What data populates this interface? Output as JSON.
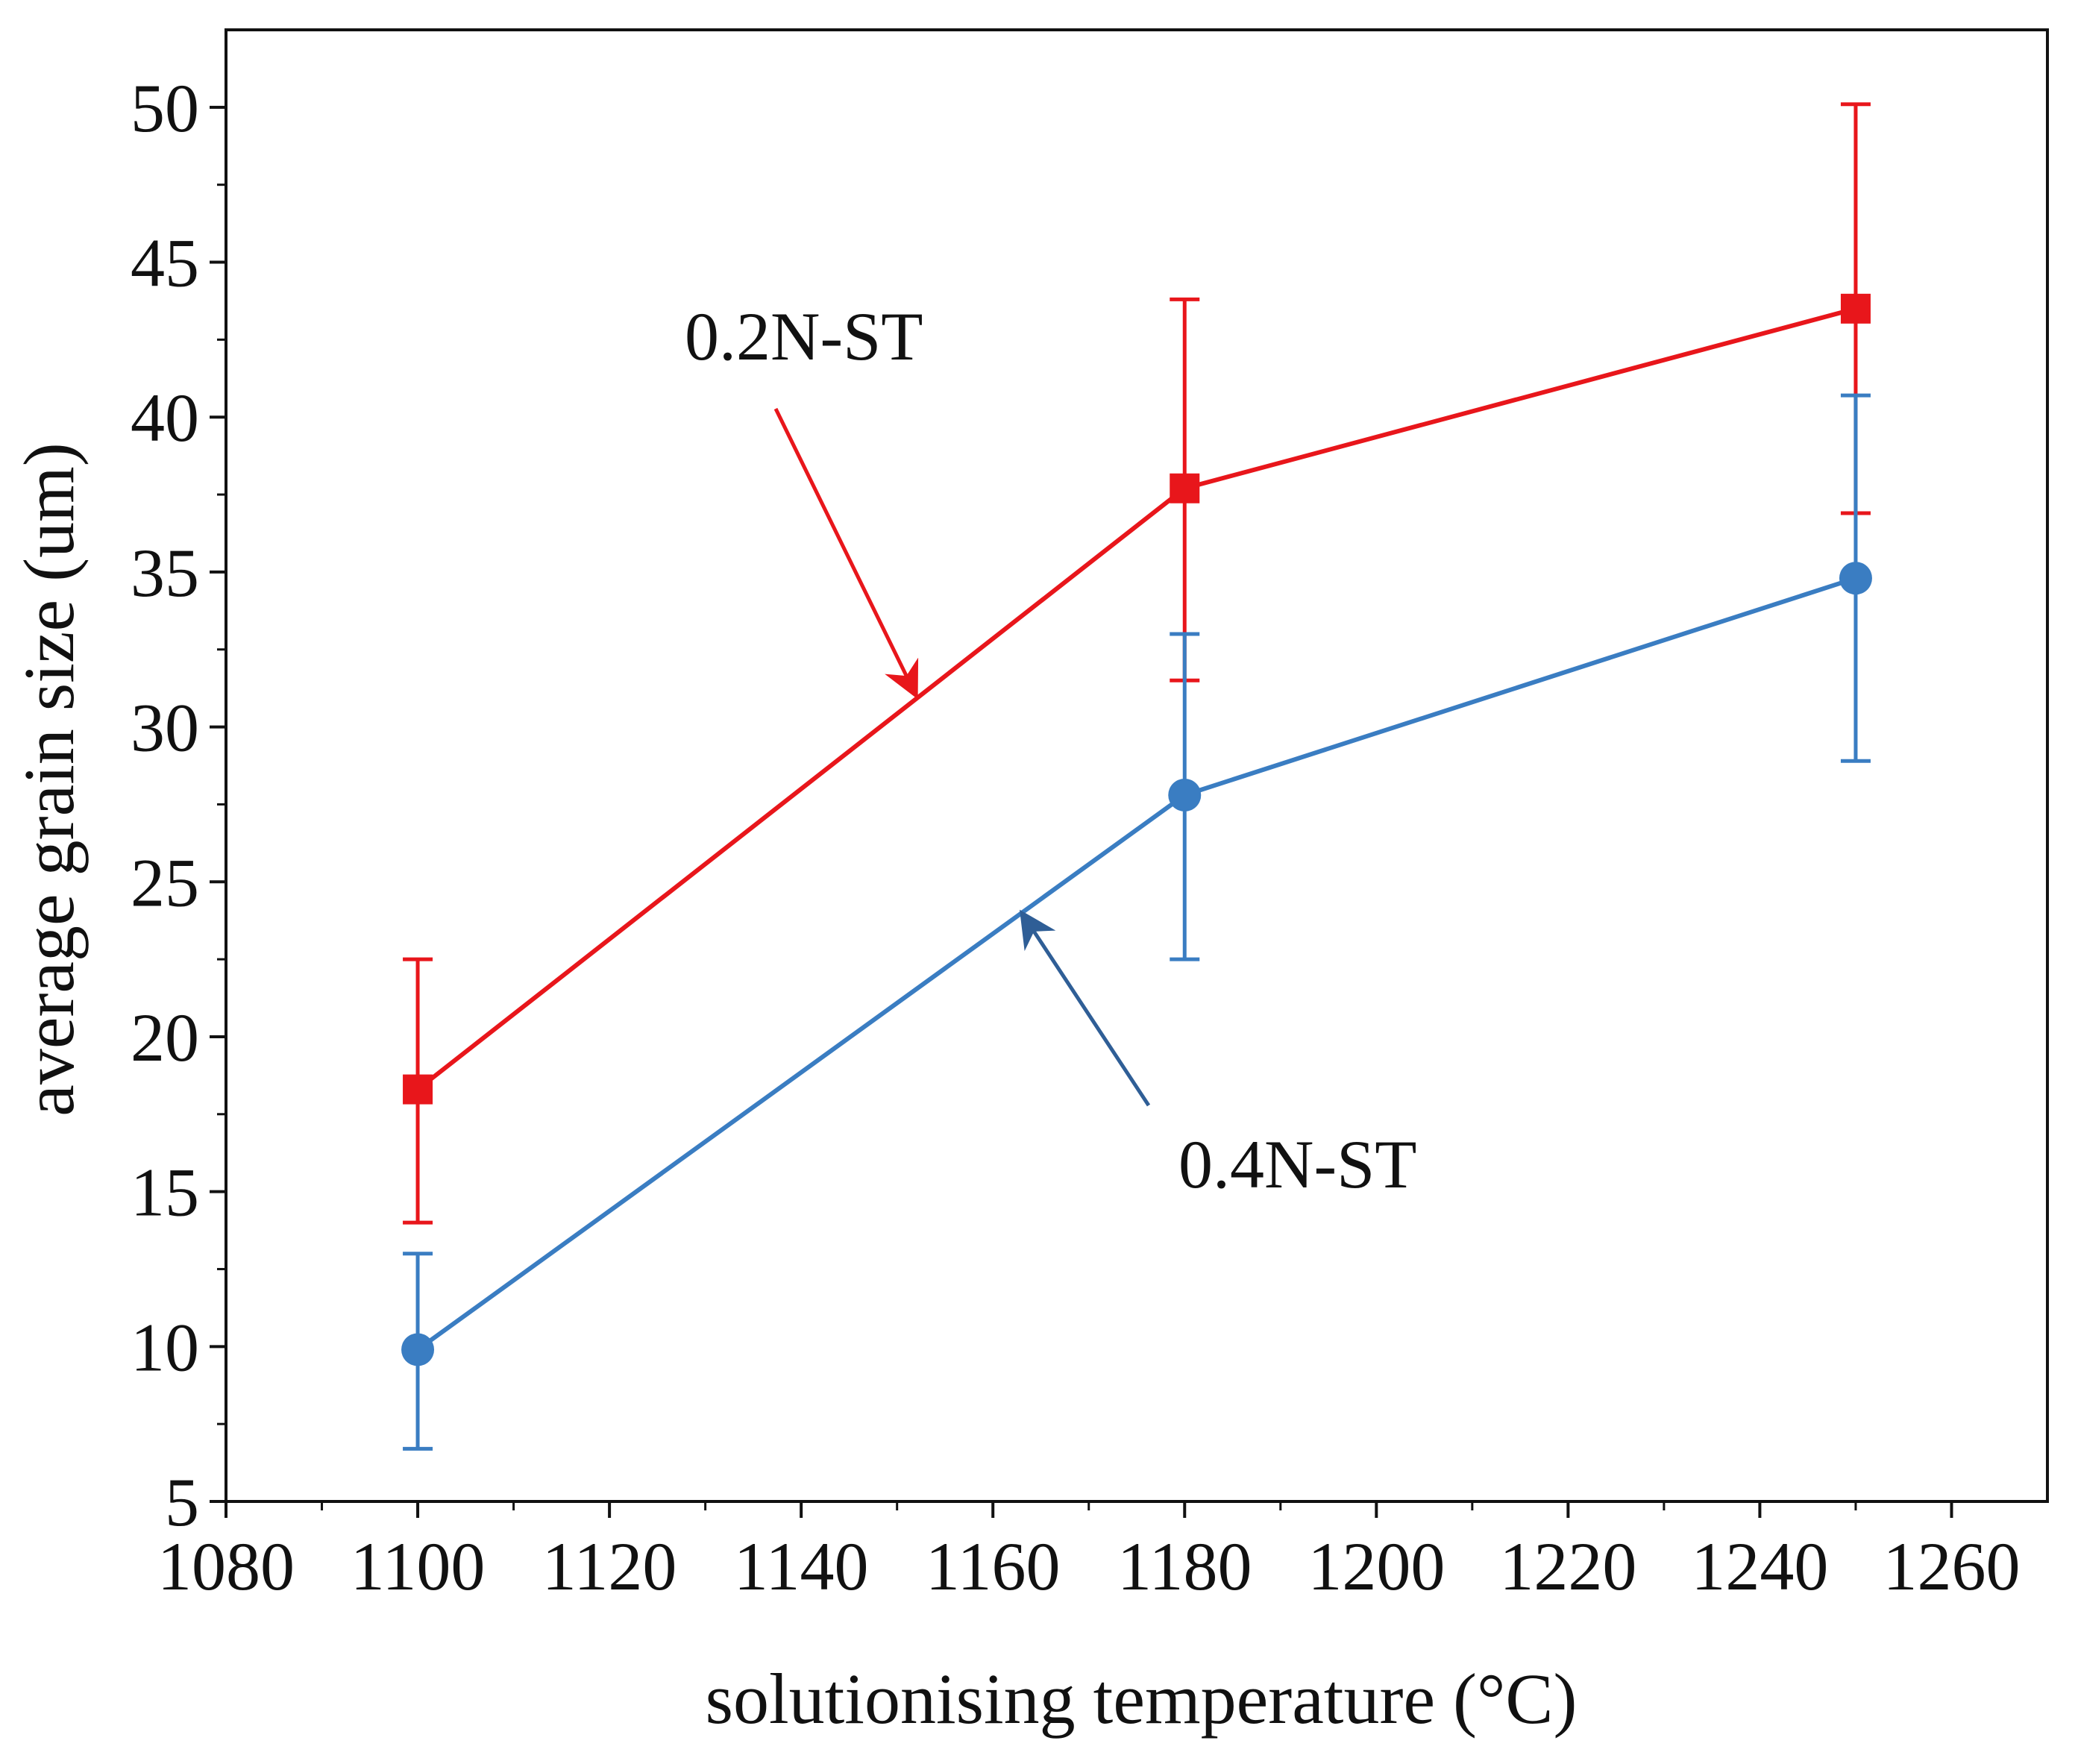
{
  "chart_data": {
    "type": "line",
    "title": "",
    "xlabel": "solutionising temperature (°C)",
    "ylabel": "average grain size (um)",
    "xlim": [
      1080,
      1270
    ],
    "ylim": [
      5,
      52.5
    ],
    "xticks": [
      1080,
      1100,
      1120,
      1140,
      1160,
      1180,
      1200,
      1220,
      1240,
      1260
    ],
    "yticks": [
      5,
      10,
      15,
      20,
      25,
      30,
      35,
      40,
      45,
      50
    ],
    "grid": false,
    "legend": "none",
    "series": [
      {
        "name": "0.2N-ST",
        "color": "#e8161b",
        "marker": "square",
        "x": [
          1100,
          1180,
          1250
        ],
        "values": [
          18.3,
          37.7,
          43.5
        ],
        "error_low": [
          14.0,
          31.5,
          36.9
        ],
        "error_high": [
          22.5,
          43.8,
          50.1
        ]
      },
      {
        "name": "0.4N-ST",
        "color": "#3a7dc2",
        "marker": "circle",
        "x": [
          1100,
          1180,
          1250
        ],
        "values": [
          9.9,
          27.8,
          34.8
        ],
        "error_low": [
          6.7,
          22.5,
          28.9
        ],
        "error_high": [
          13.0,
          33.0,
          40.7
        ]
      }
    ],
    "annotations": [
      {
        "text": "0.2N-ST",
        "series": "0.2N-ST",
        "arrow_to": {
          "x": 1152,
          "y": 31
        }
      },
      {
        "text": "0.4N-ST",
        "series": "0.4N-ST",
        "arrow_to": {
          "x": 1163,
          "y": 24
        }
      }
    ]
  }
}
